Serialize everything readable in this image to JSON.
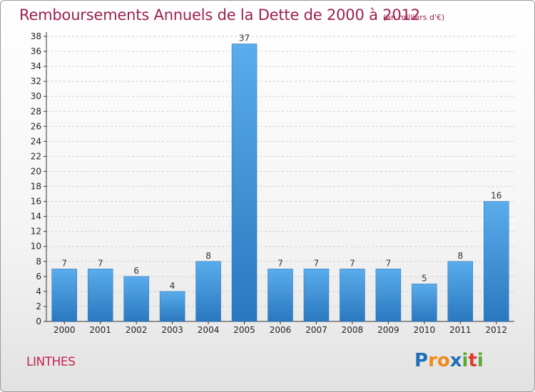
{
  "header": {
    "title": "Remboursements Annuels de la Dette de 2000 à 2012",
    "unit": "(en milliers d'€)"
  },
  "footer": {
    "place": "LINTHES",
    "logo_letters": [
      "P",
      "r",
      "o",
      "x",
      "i",
      "t",
      "i"
    ],
    "logo_colors": [
      "#1f6fb8",
      "#f28a1a",
      "#f28a1a",
      "#1f6fb8",
      "#5aa832",
      "#e03a2f",
      "#5aa832"
    ]
  },
  "chart_data": {
    "type": "bar",
    "title": "Remboursements Annuels de la Dette de 2000 à 2012",
    "xlabel": "",
    "ylabel": "",
    "categories": [
      "2000",
      "2001",
      "2002",
      "2003",
      "2004",
      "2005",
      "2006",
      "2007",
      "2008",
      "2009",
      "2010",
      "2011",
      "2012"
    ],
    "values": [
      7,
      7,
      6,
      4,
      8,
      37,
      7,
      7,
      7,
      7,
      5,
      8,
      16
    ],
    "ylim": [
      0,
      38
    ],
    "yticks": [
      0,
      2,
      4,
      6,
      8,
      10,
      12,
      14,
      16,
      18,
      20,
      22,
      24,
      26,
      28,
      30,
      32,
      34,
      36,
      38
    ],
    "grid": true,
    "bar_color": "#3d8fd6"
  }
}
